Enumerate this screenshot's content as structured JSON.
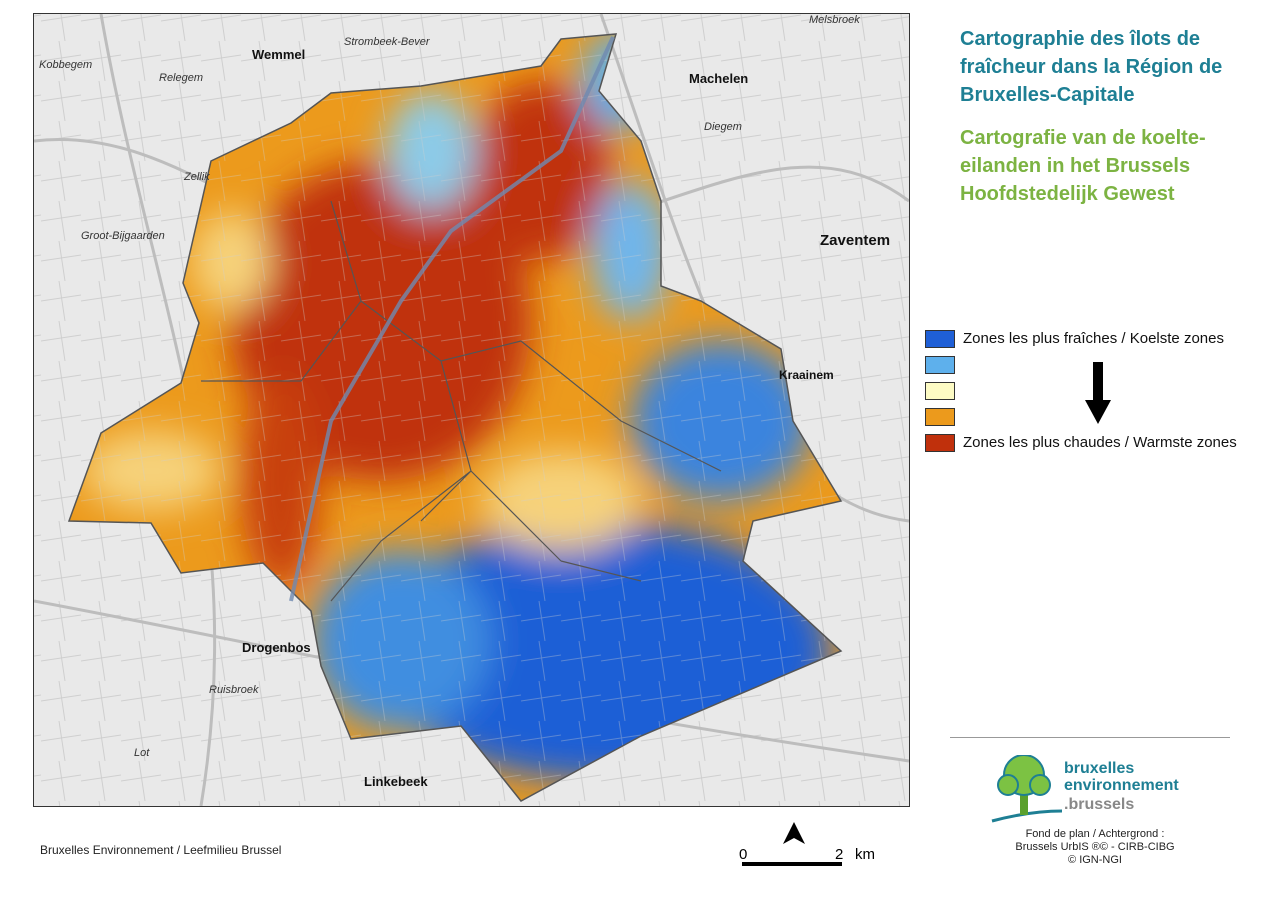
{
  "title_fr": "Cartographie des îlots de fraîcheur dans la Région de Bruxelles-Capitale",
  "title_nl": "Cartografie van de koelte-eilanden in het Brussels Hoofdstedelijk Gewest",
  "legend": {
    "items": [
      {
        "color": "#1f5fd6",
        "label": "Zones les plus fraîches / Koelste zones"
      },
      {
        "color": "#5eb0ec",
        "label": ""
      },
      {
        "color": "#fdfbc4",
        "label": ""
      },
      {
        "color": "#ec9a1c",
        "label": ""
      },
      {
        "color": "#c0300c",
        "label": "Zones les plus chaudes / Warmste zones"
      }
    ],
    "arrow_icon": "arrow-down-icon"
  },
  "places": {
    "melsbroek": "Melsbroek",
    "wemmel": "Wemmel",
    "strombeek": "Strombeek-Bever",
    "kobbegem": "Kobbegem",
    "relegem": "Relegem",
    "machelen": "Machelen",
    "diegem": "Diegem",
    "zellik": "Zellik",
    "groot_bijgaarden": "Groot-Bijgaarden",
    "zaventem": "Zaventem",
    "kraainem": "Kraainem",
    "drogenbos": "Drogenbos",
    "ruisbroek": "Ruisbroek",
    "lot": "Lot",
    "linkebeek": "Linkebeek"
  },
  "logo": {
    "line1": "bruxelles",
    "line2": "environnement",
    "line3": ".brussels"
  },
  "credits": {
    "line1": "Fond de plan / Achtergrond :",
    "line2": "Brussels UrbIS ®© - CIRB-CIBG",
    "line3": "© IGN-NGI"
  },
  "source": "Bruxelles Environnement / Leefmilieu Brussel",
  "scale": {
    "start": "0",
    "end": "2",
    "unit": "km",
    "north_icon": "north-arrow-icon"
  }
}
